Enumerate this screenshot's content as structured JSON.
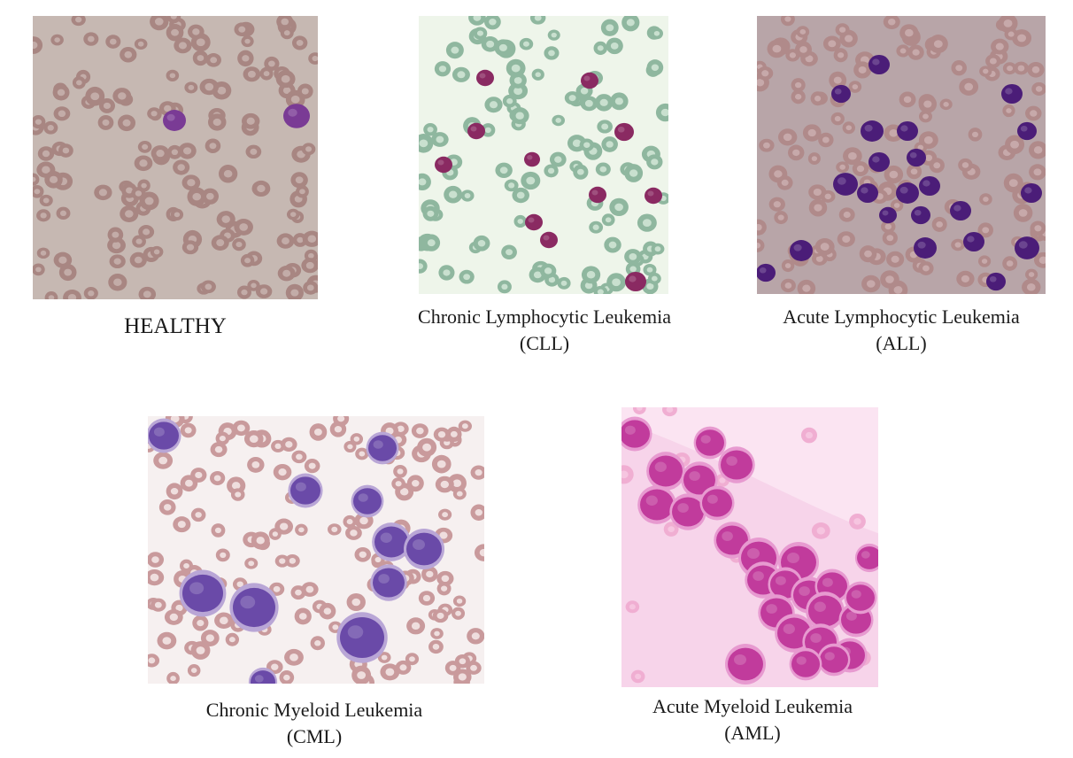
{
  "figure": {
    "panels": [
      {
        "id": "healthy",
        "caption_line1": "HEALTHY",
        "caption_line2": "",
        "background": "#c6b8b2",
        "rbc_color": "#a88682",
        "rbc_center": "#c3aca8",
        "wbc_color": "#7a3b95",
        "wbc_count": 2,
        "rbc_count": 150
      },
      {
        "id": "cll",
        "caption_line1": "Chronic Lymphocytic Leukemia",
        "caption_line2": "(CLL)",
        "background": "#eef5ea",
        "rbc_color": "#8fb79f",
        "rbc_center": "#c9e0cf",
        "wbc_color": "#8a2a62",
        "wbc_count": 11,
        "rbc_count": 110
      },
      {
        "id": "all",
        "caption_line1": "Acute Lymphocytic Leukemia",
        "caption_line2": "(ALL)",
        "background": "#b8a5a8",
        "rbc_color": "#b08a8a",
        "rbc_center": "#c7a9aa",
        "wbc_color": "#4b1d78",
        "wbc_count": 22,
        "rbc_count": 140
      },
      {
        "id": "cml",
        "caption_line1": "Chronic Myeloid Leukemia",
        "caption_line2": "(CML)",
        "background": "#f6f0f0",
        "rbc_color": "#c99a9c",
        "rbc_center": "#efdede",
        "wbc_color": "#6a4aa8",
        "wbc_count": 11,
        "rbc_count": 150
      },
      {
        "id": "aml",
        "caption_line1": "Acute Myeloid Leukemia",
        "caption_line2": "(AML)",
        "background": "#f7d4ea",
        "rbc_color": "#f0aed2",
        "rbc_center": "#f6c5e0",
        "wbc_color": "#c13b9c",
        "wbc_count": 26,
        "rbc_count": 14
      }
    ]
  }
}
